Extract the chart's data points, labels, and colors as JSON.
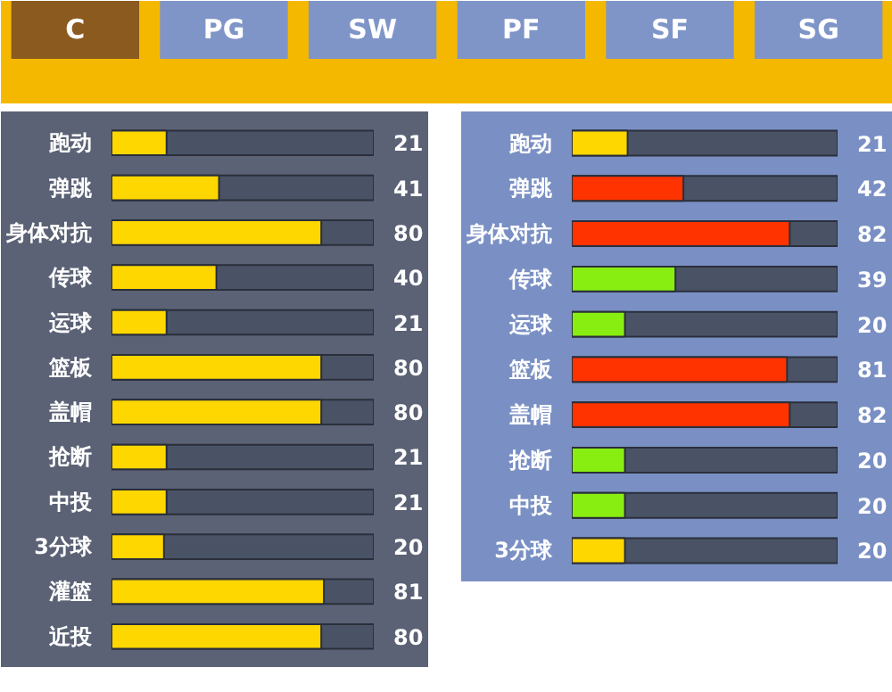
{
  "chart_data": [
    {
      "type": "other",
      "annotations": [
        "C",
        "PG",
        "SW",
        "PF",
        "SF",
        "SG"
      ]
    },
    {
      "type": "bar",
      "orientation": "horizontal",
      "categories": [
        "跑动",
        "弹跳",
        "身体对抗",
        "传球",
        "运球",
        "篮板",
        "盖帽",
        "抢断",
        "中投",
        "3分球",
        "灌篮",
        "近投"
      ],
      "values": [
        21,
        41,
        80,
        40,
        21,
        80,
        80,
        21,
        21,
        20,
        81,
        80
      ],
      "color": "#ffd700",
      "xlim": [
        0,
        100
      ],
      "data_labels": true,
      "tick_labels": "y",
      "grid": false
    },
    {
      "type": "bar",
      "orientation": "horizontal",
      "categories": [
        "跑动",
        "弹跳",
        "身体对抗",
        "传球",
        "运球",
        "篮板",
        "盖帽",
        "抢断",
        "中投",
        "3分球"
      ],
      "values": [
        21,
        42,
        82,
        39,
        20,
        81,
        82,
        20,
        20,
        20
      ],
      "colors": [
        "#ffd700",
        "#ff3300",
        "#ff3300",
        "#88ee11",
        "#88ee11",
        "#ff3300",
        "#ff3300",
        "#88ee11",
        "#88ee11",
        "#ffd700"
      ],
      "xlim": [
        0,
        100
      ],
      "data_labels": true,
      "tick_labels": "y",
      "grid": false
    }
  ]
}
